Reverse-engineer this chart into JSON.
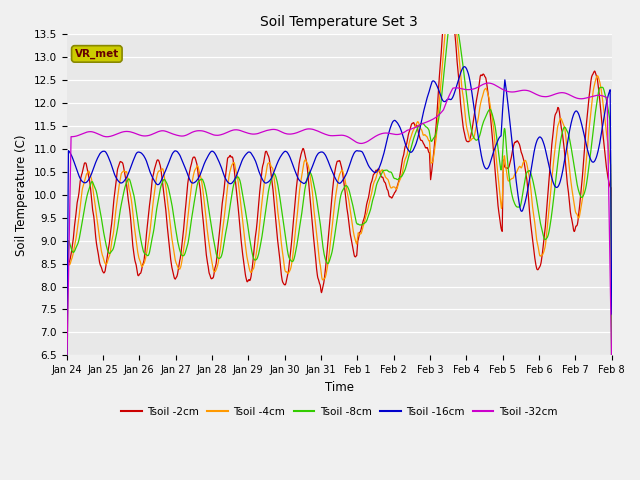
{
  "title": "Soil Temperature Set 3",
  "xlabel": "Time",
  "ylabel": "Soil Temperature (C)",
  "ylim": [
    6.5,
    13.5
  ],
  "yticks": [
    6.5,
    7.0,
    7.5,
    8.0,
    8.5,
    9.0,
    9.5,
    10.0,
    10.5,
    11.0,
    11.5,
    12.0,
    12.5,
    13.0,
    13.5
  ],
  "line_colors": {
    "2cm": "#cc0000",
    "4cm": "#ff9900",
    "8cm": "#33cc00",
    "16cm": "#0000cc",
    "32cm": "#cc00cc"
  },
  "legend_labels": [
    "Tsoil -2cm",
    "Tsoil -4cm",
    "Tsoil -8cm",
    "Tsoil -16cm",
    "Tsoil -32cm"
  ],
  "vr_met_box_color": "#cccc00",
  "vr_met_text_color": "#660000",
  "xtick_labels": [
    "Jan 24",
    "Jan 25",
    "Jan 26",
    "Jan 27",
    "Jan 28",
    "Jan 29",
    "Jan 30",
    "Jan 31",
    "Feb 1",
    "Feb 2",
    "Feb 3",
    "Feb 4",
    "Feb 5",
    "Feb 6",
    "Feb 7",
    "Feb 8"
  ],
  "plot_bg": "#e8e8e8",
  "fig_bg": "#f0f0f0"
}
